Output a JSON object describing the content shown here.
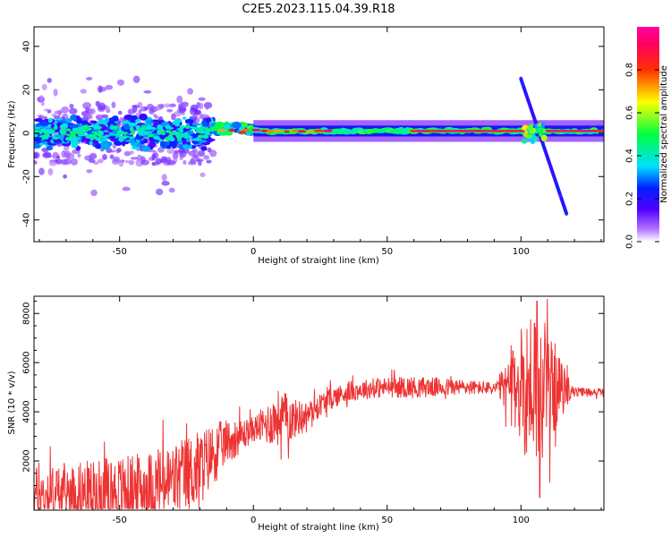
{
  "figure_title": "C2E5.2023.115.04.39.R18",
  "chart_data": [
    {
      "type": "heatmap",
      "xlabel": "Height of straight line (km)",
      "ylabel": "Frequency (Hz)",
      "xlim": [
        -82,
        131
      ],
      "ylim": [
        -50,
        49
      ],
      "xticks": [
        -50,
        0,
        50,
        100
      ],
      "yticks": [
        -40,
        -20,
        0,
        20,
        40
      ],
      "colorbar": {
        "label": "Normalized spectral amplitude",
        "range": [
          0.0,
          1.0
        ],
        "ticks": [
          0.0,
          0.2,
          0.4,
          0.6,
          0.8
        ],
        "colormap": [
          "#ffffff",
          "#7f00ff",
          "#0000ff",
          "#00ffff",
          "#00ff00",
          "#ffff00",
          "#ff8000",
          "#ff0000",
          "#ff00ff"
        ]
      },
      "features": [
        {
          "name": "noisy",
          "x_range": [
            -82,
            -15
          ],
          "freq_center": 0,
          "freq_halfwidth": 8,
          "amplitude": 0.35
        },
        {
          "name": "transition",
          "x_range": [
            -15,
            0
          ],
          "freq_center": 2,
          "freq_halfwidth": 2,
          "amplitude": 0.6
        },
        {
          "name": "band",
          "x_range": [
            0,
            131
          ],
          "freq_center": 1,
          "freq_halfwidth": 2.5,
          "amplitude": 0.55
        },
        {
          "name": "core",
          "x_range": [
            60,
            131
          ],
          "freq_center": 1,
          "freq_halfwidth": 0.8,
          "amplitude": 0.95
        },
        {
          "name": "streak",
          "x_start": 100,
          "freq_start": 25,
          "x_end": 117,
          "freq_end": -37,
          "amplitude": 0.25
        }
      ]
    },
    {
      "type": "line",
      "xlabel": "Height of straight line (km)",
      "ylabel": "SNR (10 * v/v)",
      "xlim": [
        -82,
        131
      ],
      "ylim": [
        0,
        8700
      ],
      "xticks": [
        -50,
        0,
        50,
        100
      ],
      "yticks": [
        2000,
        4000,
        6000,
        8000
      ],
      "color": "#ee3333",
      "baseline": {
        "x": [
          -82,
          -60,
          -40,
          -30,
          -20,
          -15,
          -10,
          -5,
          0,
          5,
          10,
          15,
          20,
          25,
          30,
          35,
          40,
          50,
          60,
          70,
          80,
          90,
          95,
          98,
          100,
          105,
          110,
          113,
          115,
          118,
          120,
          125,
          131
        ],
        "y": [
          600,
          700,
          900,
          1200,
          1700,
          2300,
          2800,
          3000,
          3300,
          3500,
          3800,
          3700,
          3900,
          4300,
          4600,
          4800,
          4900,
          5000,
          5000,
          5000,
          5000,
          4950,
          5000,
          5000,
          5000,
          5000,
          5000,
          5000,
          4900,
          4900,
          4800,
          4800,
          4800
        ]
      },
      "noise_amplitude": {
        "x": [
          -82,
          -20,
          -10,
          0,
          10,
          20,
          40,
          60,
          90,
          96,
          100,
          105,
          110,
          115,
          118,
          120,
          131
        ],
        "y": [
          1200,
          1600,
          900,
          500,
          1200,
          500,
          400,
          450,
          250,
          1200,
          2500,
          3500,
          2500,
          1200,
          500,
          200,
          150
        ]
      },
      "peaks": [
        {
          "x": 106,
          "y": 8500
        },
        {
          "x": 107,
          "y": 520
        },
        {
          "x": 105,
          "y": 7600
        }
      ]
    }
  ]
}
